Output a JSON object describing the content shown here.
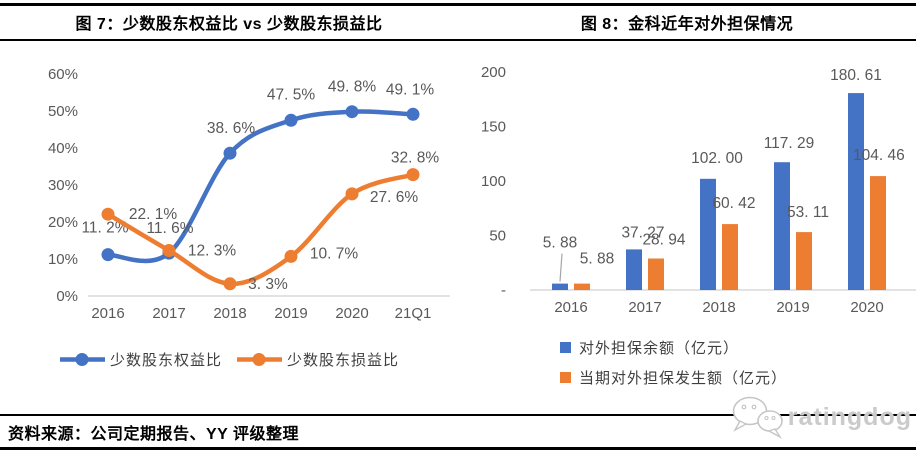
{
  "page": {
    "source_note": "资料来源：公司定期报告、YY 评级整理",
    "watermark_text": "ratingdog",
    "colors": {
      "series_blue": "#4472C4",
      "series_orange": "#ED7D31",
      "axis_text": "#595959",
      "axis_line": "#D9D9D9"
    }
  },
  "figure7": {
    "title": "图 7：少数股东权益比 vs 少数股东损益比",
    "chart_data": {
      "type": "line",
      "categories": [
        "2016",
        "2017",
        "2018",
        "2019",
        "2020",
        "21Q1"
      ],
      "y_ticks": [
        "60%",
        "50%",
        "40%",
        "30%",
        "20%",
        "10%",
        "0%"
      ],
      "ylim": [
        0,
        60
      ],
      "grid": false,
      "legend_position": "bottom-center",
      "series": [
        {
          "name": "少数股东权益比",
          "color": "#4472C4",
          "values": [
            11.2,
            11.6,
            38.6,
            47.5,
            49.8,
            49.1
          ],
          "labels": [
            "11. 2%",
            "11. 6%",
            "38. 6%",
            "47. 5%",
            "49. 8%",
            "49. 1%"
          ]
        },
        {
          "name": "少数股东损益比",
          "color": "#ED7D31",
          "values": [
            22.1,
            12.3,
            3.3,
            10.7,
            27.6,
            32.8
          ],
          "labels": [
            "22. 1%",
            "12. 3%",
            "3. 3%",
            "10. 7%",
            "27. 6%",
            "32. 8%"
          ]
        }
      ]
    }
  },
  "figure8": {
    "title": "图 8：金科近年对外担保情况",
    "chart_data": {
      "type": "bar",
      "categories": [
        "2016",
        "2017",
        "2018",
        "2019",
        "2020"
      ],
      "y_ticks": [
        "200",
        "150",
        "100",
        "50",
        "-"
      ],
      "ylim": [
        0,
        200
      ],
      "grid": false,
      "legend_position": "bottom-left",
      "series": [
        {
          "name": "对外担保余额（亿元）",
          "color": "#4472C4",
          "values": [
            5.88,
            37.27,
            102.0,
            117.29,
            180.61
          ],
          "labels": [
            "5. 88",
            "37. 27",
            "102. 00",
            "117. 29",
            "180. 61"
          ]
        },
        {
          "name": "当期对外担保发生额（亿元）",
          "color": "#ED7D31",
          "values": [
            5.88,
            28.94,
            60.42,
            53.11,
            104.46
          ],
          "labels": [
            "5. 88",
            "28. 94",
            "60. 42",
            "53. 11",
            "104. 46"
          ]
        }
      ]
    }
  }
}
